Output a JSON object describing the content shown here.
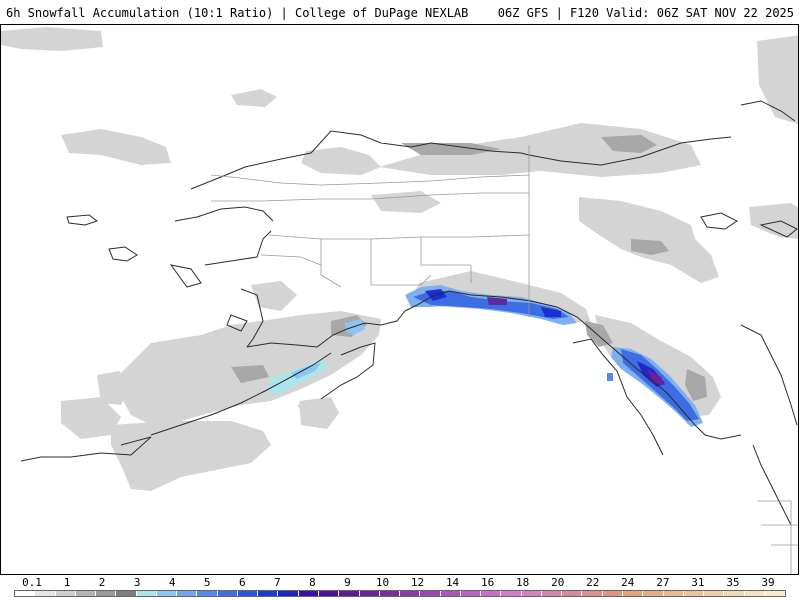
{
  "header": {
    "left_title": "6h Snowfall Accumulation (10:1 Ratio) | College of DuPage NEXLAB",
    "right_title": "06Z GFS | F120 Valid: 06Z SAT NOV 22 2025"
  },
  "legend": {
    "labels": [
      "0.1",
      "1",
      "2",
      "3",
      "4",
      "5",
      "6",
      "7",
      "8",
      "9",
      "10",
      "12",
      "14",
      "16",
      "18",
      "20",
      "22",
      "24",
      "27",
      "31",
      "35",
      "39"
    ],
    "colors": [
      "#ffffff",
      "#e6e6e6",
      "#cfcfcf",
      "#b4b4b4",
      "#9a9a9a",
      "#7d7d7d",
      "#a9e6ec",
      "#8cc4f2",
      "#6fa6ef",
      "#568ae8",
      "#3e6fe2",
      "#2c55dc",
      "#1c3ad8",
      "#1e23c8",
      "#3c10a8",
      "#4d129c",
      "#5f1a96",
      "#6c2399",
      "#7a2e9e",
      "#8c3aa6",
      "#9d48b0",
      "#ad56ba",
      "#bc63c2",
      "#c96fc8",
      "#d27bc8",
      "#d482bb",
      "#d686ab",
      "#d88a9c",
      "#dc8e8d",
      "#e0967e",
      "#e3a17d",
      "#e6ad85",
      "#e9b98f",
      "#ecc59b",
      "#efcfa7",
      "#f2d9b4",
      "#f5e2c2",
      "#f8ebd0"
    ]
  }
}
